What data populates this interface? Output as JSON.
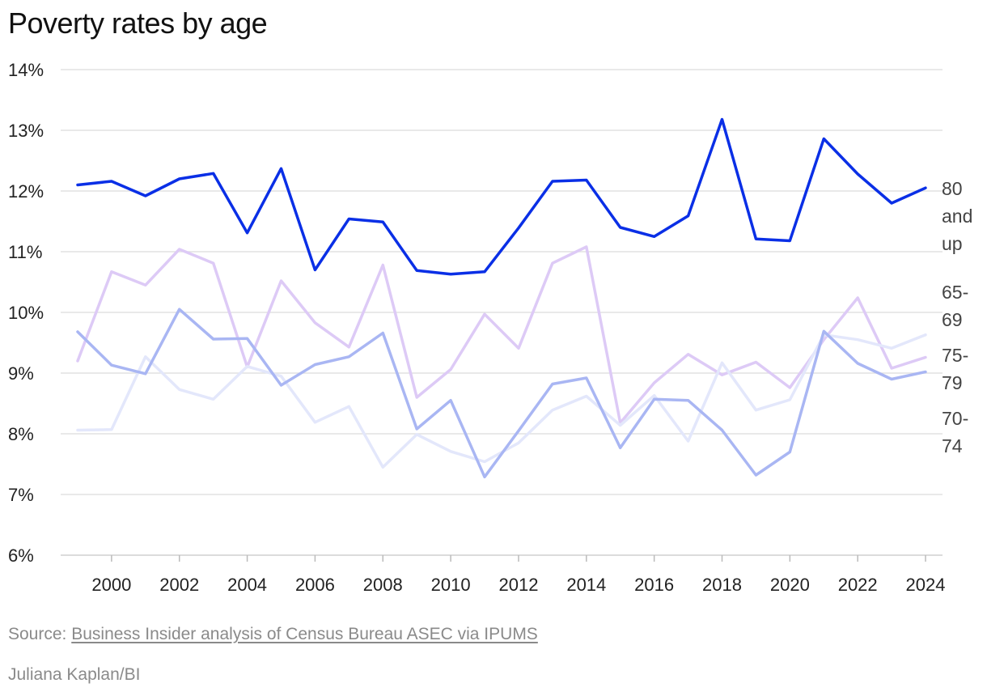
{
  "title": "Poverty rates by age",
  "source": {
    "prefix": "Source:",
    "link_text": "Business Insider analysis of Census Bureau ASEC via IPUMS"
  },
  "byline": "Juliana Kaplan/BI",
  "chart_data": {
    "type": "line",
    "title": "Poverty rates by age",
    "xlabel": "",
    "ylabel": "",
    "x": [
      1999,
      2000,
      2001,
      2002,
      2003,
      2004,
      2005,
      2006,
      2007,
      2008,
      2009,
      2010,
      2011,
      2012,
      2013,
      2014,
      2015,
      2016,
      2017,
      2018,
      2019,
      2020,
      2021,
      2022,
      2023,
      2024
    ],
    "xticks": [
      2000,
      2002,
      2004,
      2006,
      2008,
      2010,
      2012,
      2014,
      2016,
      2018,
      2020,
      2022,
      2024
    ],
    "xlim": [
      1998.5,
      2024.5
    ],
    "ylim": [
      6,
      14
    ],
    "yticks": [
      6,
      7,
      8,
      9,
      10,
      11,
      12,
      13,
      14
    ],
    "ytick_suffix": "%",
    "grid": true,
    "legend": "direct labels at right",
    "series": [
      {
        "name": "65-69",
        "label_lines": [
          "65-",
          "69"
        ],
        "color": "#ddcaf6",
        "values": [
          9.2,
          10.67,
          10.45,
          11.04,
          10.81,
          9.1,
          10.52,
          9.83,
          9.43,
          10.78,
          8.6,
          9.06,
          9.97,
          9.41,
          10.81,
          11.08,
          8.18,
          8.84,
          9.31,
          8.97,
          9.18,
          8.76,
          9.55,
          10.24,
          9.08,
          9.26
        ]
      },
      {
        "name": "70-74",
        "label_lines": [
          "70-",
          "74"
        ],
        "color": "#e3e7fb",
        "values": [
          8.06,
          8.07,
          9.27,
          8.73,
          8.57,
          9.11,
          8.95,
          8.19,
          8.45,
          7.45,
          7.99,
          7.71,
          7.54,
          7.85,
          8.39,
          8.62,
          8.14,
          8.63,
          7.88,
          9.17,
          8.39,
          8.56,
          9.63,
          9.55,
          9.41,
          9.63
        ]
      },
      {
        "name": "75-79",
        "label_lines": [
          "75-",
          "79"
        ],
        "color": "#a9b6f3",
        "values": [
          9.68,
          9.13,
          8.99,
          10.05,
          9.56,
          9.57,
          8.8,
          9.14,
          9.27,
          9.66,
          8.08,
          8.55,
          7.29,
          8.05,
          8.82,
          8.92,
          7.77,
          8.57,
          8.55,
          8.06,
          7.32,
          7.7,
          9.69,
          9.16,
          8.9,
          9.02
        ]
      },
      {
        "name": "80 and up",
        "label_lines": [
          "80",
          "and",
          "up"
        ],
        "color": "#0a2fe6",
        "values": [
          12.1,
          12.16,
          11.92,
          12.2,
          12.29,
          11.31,
          12.37,
          10.7,
          11.54,
          11.49,
          10.69,
          10.63,
          10.67,
          11.39,
          12.16,
          12.18,
          11.4,
          11.25,
          11.59,
          13.18,
          11.21,
          11.18,
          12.86,
          12.28,
          11.8,
          12.05
        ]
      }
    ]
  }
}
